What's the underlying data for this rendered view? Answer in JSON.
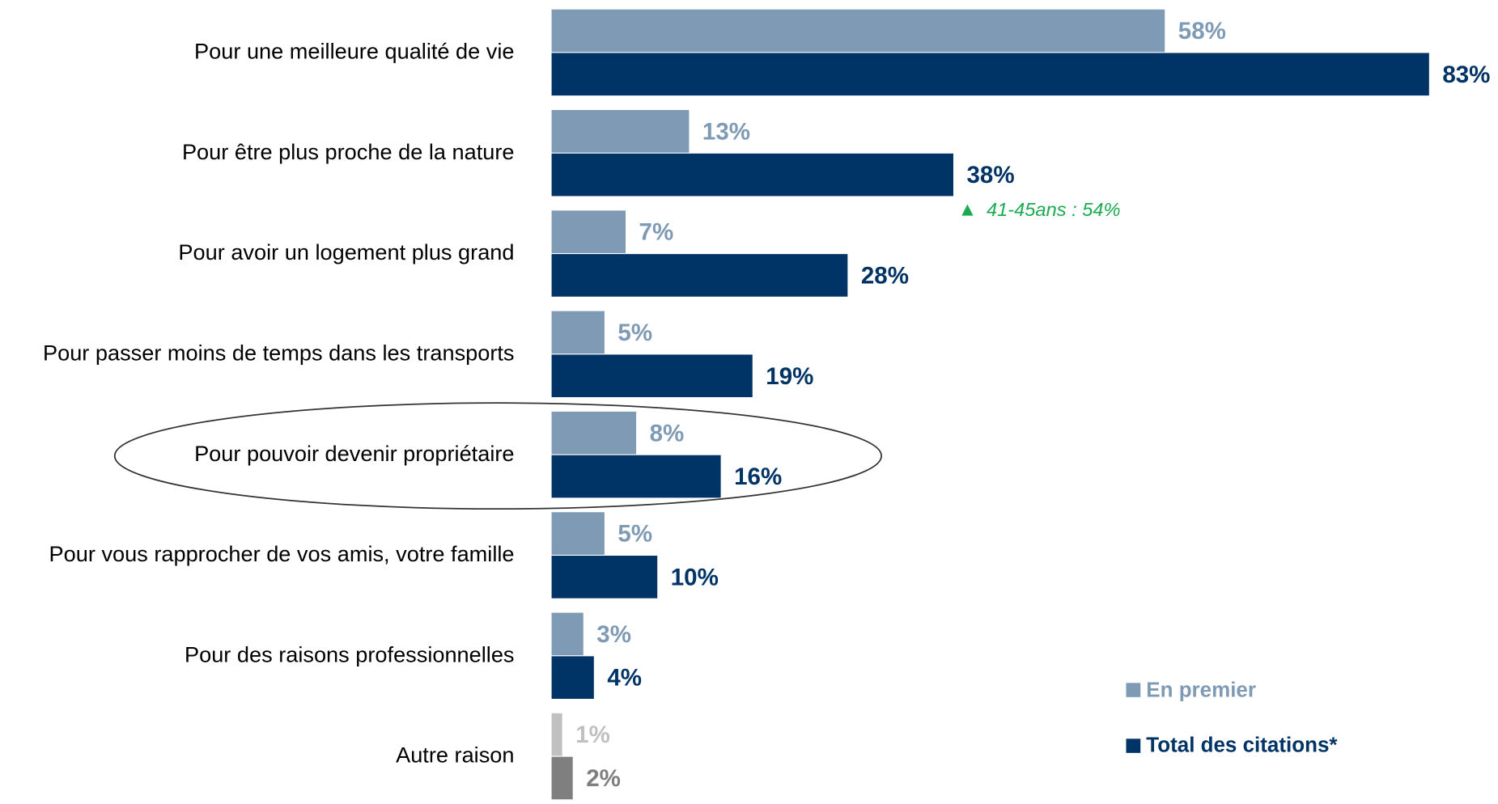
{
  "chart_data": {
    "type": "hbar",
    "categories": [
      "Pour une meilleure qualité de vie",
      "Pour être plus proche de la nature",
      "Pour avoir un logement plus grand",
      "Pour passer moins de temps dans les transports",
      "Pour pouvoir devenir propriétaire",
      "Pour vous rapprocher de vos amis, votre famille",
      "Pour des raisons professionnelles",
      "Autre raison"
    ],
    "xlim": [
      0,
      85
    ],
    "series": [
      {
        "name": "En premier",
        "color": "#7f9ab5",
        "colors": [
          "#7f9ab5",
          "#7f9ab5",
          "#7f9ab5",
          "#7f9ab5",
          "#7f9ab5",
          "#7f9ab5",
          "#7f9ab5",
          "#c0c0c0"
        ],
        "values": [
          58,
          13,
          7,
          5,
          8,
          5,
          3,
          1
        ],
        "value_labels": [
          "58%",
          "13%",
          "7%",
          "5%",
          "8%",
          "5%",
          "3%",
          "1%"
        ]
      },
      {
        "name": "Total des citations*",
        "color": "#003366",
        "colors": [
          "#003366",
          "#003366",
          "#003366",
          "#003366",
          "#003366",
          "#003366",
          "#003366",
          "#7f7f7f"
        ],
        "values": [
          83,
          38,
          28,
          19,
          16,
          10,
          4,
          2
        ],
        "value_labels": [
          "83%",
          "38%",
          "28%",
          "19%",
          "16%",
          "10%",
          "4%",
          "2%"
        ]
      }
    ],
    "annotation": "41-45ans : 54%"
  }
}
